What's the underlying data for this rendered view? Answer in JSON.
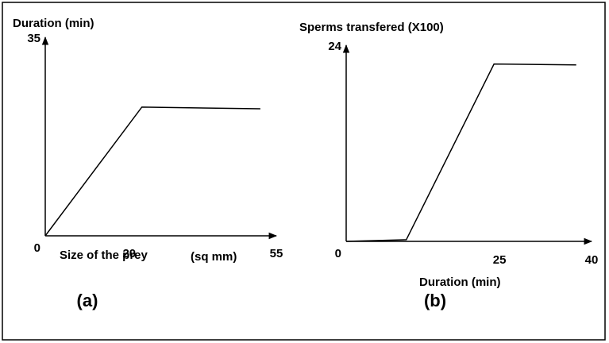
{
  "chart_data": [
    {
      "type": "line",
      "panel_label": "(a)",
      "ylabel": "Duration (min)",
      "xlabel": "Size of the prey",
      "annotations": [
        "(sq mm)"
      ],
      "x": [
        0,
        23,
        51.2
      ],
      "series": [
        {
          "color": "#000000",
          "values": [
            0,
            22.7,
            22.4
          ]
        }
      ],
      "xlim": [
        0,
        55
      ],
      "ylim": [
        0,
        35
      ],
      "xticks": [
        20,
        55
      ],
      "yticks": [
        0,
        35
      ]
    },
    {
      "type": "line",
      "panel_label": "(b)",
      "ylabel": "Sperms transfered (X100)",
      "xlabel": "Duration (min)",
      "x": [
        0,
        9.8,
        24.1,
        37.5
      ],
      "series": [
        {
          "color": "#000000",
          "values": [
            0,
            0.2,
            21.7,
            21.6
          ]
        }
      ],
      "xlim": [
        0,
        40
      ],
      "ylim": [
        0,
        24
      ],
      "xticks": [
        25,
        40
      ],
      "yticks": [
        0,
        24
      ]
    }
  ]
}
